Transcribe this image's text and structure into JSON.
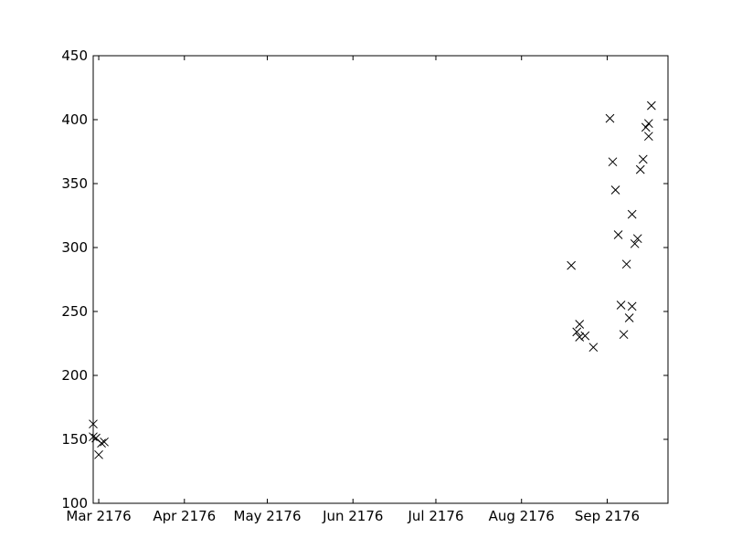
{
  "chart_data": {
    "type": "scatter",
    "title": "",
    "xlabel": "",
    "ylabel": "",
    "x_axis_type": "date",
    "xlim": [
      "2176-02-28",
      "2176-09-23"
    ],
    "ylim": [
      100,
      450
    ],
    "marker": "x",
    "grid": false,
    "x_ticks": [
      {
        "date": "2176-03-01",
        "label": "Mar 2176"
      },
      {
        "date": "2176-04-01",
        "label": "Apr 2176"
      },
      {
        "date": "2176-05-01",
        "label": "May 2176"
      },
      {
        "date": "2176-06-01",
        "label": "Jun 2176"
      },
      {
        "date": "2176-07-01",
        "label": "Jul 2176"
      },
      {
        "date": "2176-08-01",
        "label": "Aug 2176"
      },
      {
        "date": "2176-09-01",
        "label": "Sep 2176"
      }
    ],
    "y_ticks": [
      {
        "value": 100,
        "label": "100"
      },
      {
        "value": 150,
        "label": "150"
      },
      {
        "value": 200,
        "label": "200"
      },
      {
        "value": 250,
        "label": "250"
      },
      {
        "value": 300,
        "label": "300"
      },
      {
        "value": 350,
        "label": "350"
      },
      {
        "value": 400,
        "label": "400"
      },
      {
        "value": 450,
        "label": "450"
      }
    ],
    "points": [
      {
        "x": "2176-02-28",
        "y": 162
      },
      {
        "x": "2176-02-28",
        "y": 152
      },
      {
        "x": "2176-02-29",
        "y": 151
      },
      {
        "x": "2176-03-01",
        "y": 138
      },
      {
        "x": "2176-03-02",
        "y": 147
      },
      {
        "x": "2176-03-03",
        "y": 148
      },
      {
        "x": "2176-08-19",
        "y": 286
      },
      {
        "x": "2176-08-21",
        "y": 234
      },
      {
        "x": "2176-08-22",
        "y": 240
      },
      {
        "x": "2176-08-22",
        "y": 230
      },
      {
        "x": "2176-08-24",
        "y": 231
      },
      {
        "x": "2176-08-27",
        "y": 222
      },
      {
        "x": "2176-09-02",
        "y": 401
      },
      {
        "x": "2176-09-03",
        "y": 367
      },
      {
        "x": "2176-09-04",
        "y": 345
      },
      {
        "x": "2176-09-05",
        "y": 310
      },
      {
        "x": "2176-09-06",
        "y": 255
      },
      {
        "x": "2176-09-07",
        "y": 232
      },
      {
        "x": "2176-09-08",
        "y": 287
      },
      {
        "x": "2176-09-09",
        "y": 245
      },
      {
        "x": "2176-09-10",
        "y": 326
      },
      {
        "x": "2176-09-10",
        "y": 254
      },
      {
        "x": "2176-09-11",
        "y": 303
      },
      {
        "x": "2176-09-12",
        "y": 307
      },
      {
        "x": "2176-09-13",
        "y": 361
      },
      {
        "x": "2176-09-14",
        "y": 369
      },
      {
        "x": "2176-09-15",
        "y": 394
      },
      {
        "x": "2176-09-16",
        "y": 387
      },
      {
        "x": "2176-09-16",
        "y": 397
      },
      {
        "x": "2176-09-17",
        "y": 411
      }
    ]
  }
}
